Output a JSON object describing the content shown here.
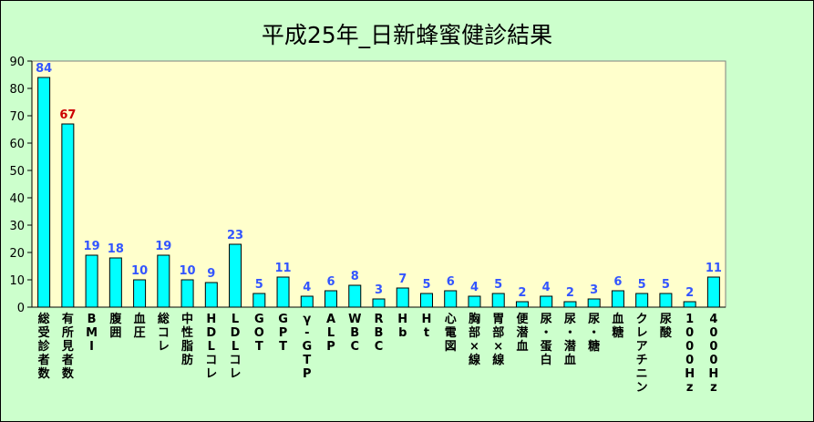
{
  "chart_data": {
    "type": "bar",
    "title": "平成25年_日新蜂蜜健診結果",
    "ylim": [
      0,
      90
    ],
    "yticks": [
      0,
      10,
      20,
      30,
      40,
      50,
      60,
      70,
      80,
      90
    ],
    "grid": false,
    "colors": {
      "background": "#ccffcc",
      "plot_area": "#ffffcc",
      "bar": "#00ffff",
      "label": "#3355ff",
      "label_highlight": "#cc0000"
    },
    "highlight_index": 1,
    "categories": [
      "総受診者数",
      "有所見者数",
      "BMI",
      "腹囲",
      "血圧",
      "総コレ",
      "中性脂肪",
      "HDLコレ",
      "LDLコレ",
      "GOT",
      "GPT",
      "γ-GTP",
      "ALP",
      "WBC",
      "RBC",
      "Hb",
      "Ht",
      "心電図",
      "胸部×線",
      "胃部×線",
      "便潜血",
      "尿・蛋白",
      "尿・潜血",
      "尿・糖",
      "血糖",
      "クレアチニン",
      "尿酸",
      "1000Hz",
      "4000Hz"
    ],
    "values": [
      84,
      67,
      19,
      18,
      10,
      19,
      10,
      9,
      23,
      5,
      11,
      4,
      6,
      8,
      3,
      7,
      5,
      6,
      4,
      5,
      2,
      4,
      2,
      3,
      6,
      5,
      5,
      2,
      11
    ]
  }
}
